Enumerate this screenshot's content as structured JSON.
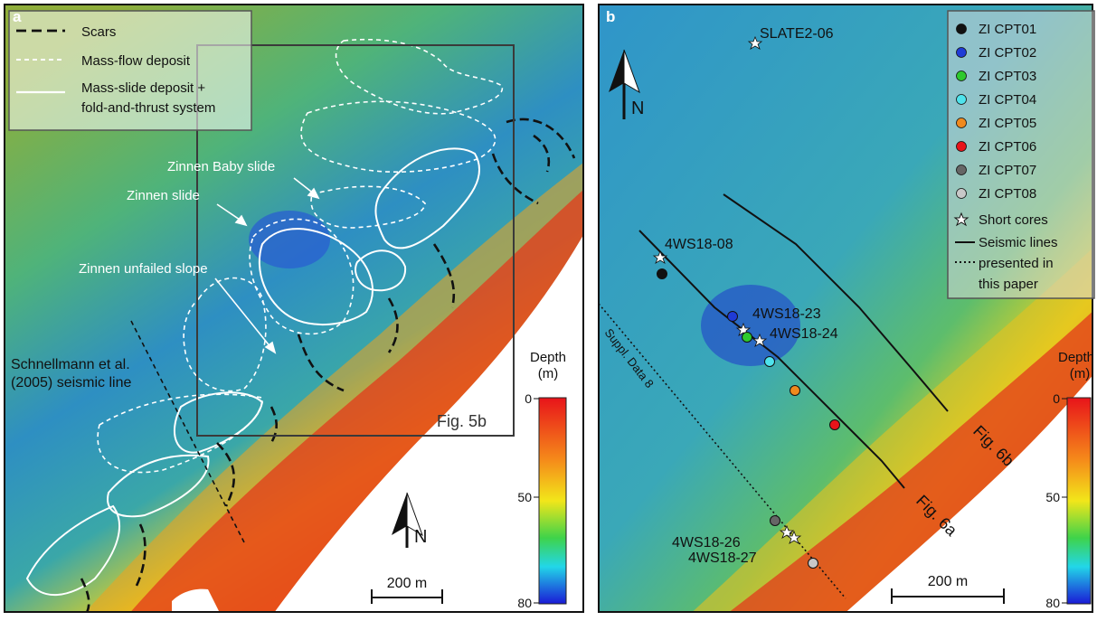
{
  "panel_a": {
    "letter": "a",
    "legend": {
      "scars": "Scars",
      "mass_flow": "Mass-flow deposit",
      "mass_slide_1": "Mass-slide deposit +",
      "mass_slide_2": "fold-and-thrust system"
    },
    "labels": {
      "baby_slide": "Zinnen Baby slide",
      "zinnen_slide": "Zinnen slide",
      "unfailed": "Zinnen unfailed slope",
      "schnell_1": "Schnellmann et al.",
      "schnell_2": "(2005) seismic line",
      "fig5b": "Fig. 5b"
    },
    "north": "N",
    "scale": "200 m",
    "depth_title_1": "Depth",
    "depth_title_2": "(m)",
    "depth_ticks": [
      "0",
      "50",
      "80"
    ]
  },
  "panel_b": {
    "letter": "b",
    "north": "N",
    "scale": "200 m",
    "depth_title_1": "Depth",
    "depth_title_2": "(m)",
    "depth_ticks": [
      "0",
      "50",
      "80"
    ],
    "cores": {
      "slate": "SLATE2-06",
      "ws08": "4WS18-08",
      "ws23": "4WS18-23",
      "ws24": "4WS18-24",
      "ws26": "4WS18-26",
      "ws27": "4WS18-27"
    },
    "lines": {
      "suppl": "Suppl. Data 8",
      "fig6a": "Fig. 6a",
      "fig6b": "Fig. 6b"
    },
    "legend": {
      "cpt": [
        {
          "label": "ZI CPT01",
          "color": "#111111"
        },
        {
          "label": "ZI CPT02",
          "color": "#1f3bd6"
        },
        {
          "label": "ZI CPT03",
          "color": "#2ec92e"
        },
        {
          "label": "ZI CPT04",
          "color": "#4fe3ec"
        },
        {
          "label": "ZI CPT05",
          "color": "#f08a1e"
        },
        {
          "label": "ZI CPT06",
          "color": "#e8141a"
        },
        {
          "label": "ZI CPT07",
          "color": "#666666"
        },
        {
          "label": "ZI CPT08",
          "color": "#c8c8c8"
        }
      ],
      "short_cores": "Short cores",
      "seismic_1": "Seismic lines",
      "seismic_2": "presented in",
      "seismic_3": "this paper"
    }
  }
}
